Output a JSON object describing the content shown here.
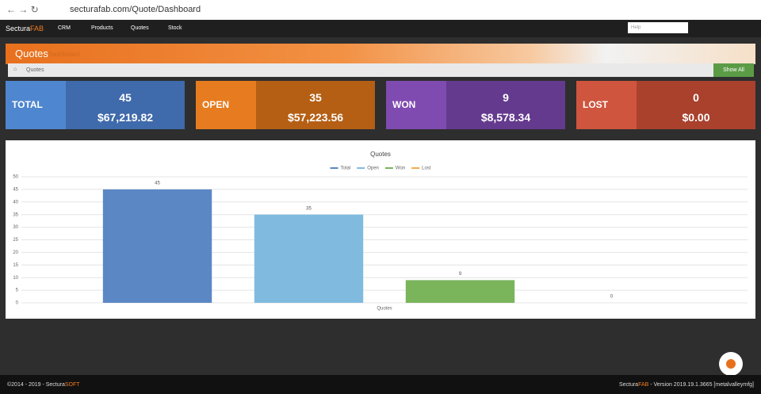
{
  "browser": {
    "url": "secturafab.com/Quote/Dashboard"
  },
  "navbar": {
    "brand": "Sectura",
    "brand_accent": "FAB",
    "menu": [
      "CRM",
      "Products",
      "Quotes",
      "Stock"
    ],
    "search_placeholder": "Help"
  },
  "header": {
    "title": "Quotes",
    "subtitle": "Dashboard"
  },
  "breadcrumb": {
    "items": [
      "Quotes"
    ],
    "button": "Show All"
  },
  "tiles": [
    {
      "label": "TOTAL",
      "count": "45",
      "amount": "$67,219.82"
    },
    {
      "label": "OPEN",
      "count": "35",
      "amount": "$57,223.56"
    },
    {
      "label": "WON",
      "count": "9",
      "amount": "$8,578.34"
    },
    {
      "label": "LOST",
      "count": "0",
      "amount": "$0.00"
    }
  ],
  "chart_data": {
    "type": "bar",
    "title": "Quotes",
    "categories": [
      "Quotes"
    ],
    "series": [
      {
        "name": "Total",
        "color": "#5b87c5",
        "values": [
          45
        ]
      },
      {
        "name": "Open",
        "color": "#80bbdf",
        "values": [
          35
        ]
      },
      {
        "name": "Won",
        "color": "#7ab55c",
        "values": [
          9
        ]
      },
      {
        "name": "Lost",
        "color": "#f0ad4e",
        "values": [
          0
        ]
      }
    ],
    "ylim": [
      0,
      50
    ],
    "yticks": [
      0,
      5,
      10,
      15,
      20,
      25,
      30,
      35,
      40,
      45,
      50
    ],
    "grid": true,
    "legend": "top"
  },
  "footer": {
    "left": "©2014 - 2019 - Sectura",
    "left_accent": "SOFT",
    "right_brand": "Sectura",
    "right_accent": "FAB",
    "right_version": " - Version 2019.19.1.3665 [metalvalleymfg]"
  }
}
